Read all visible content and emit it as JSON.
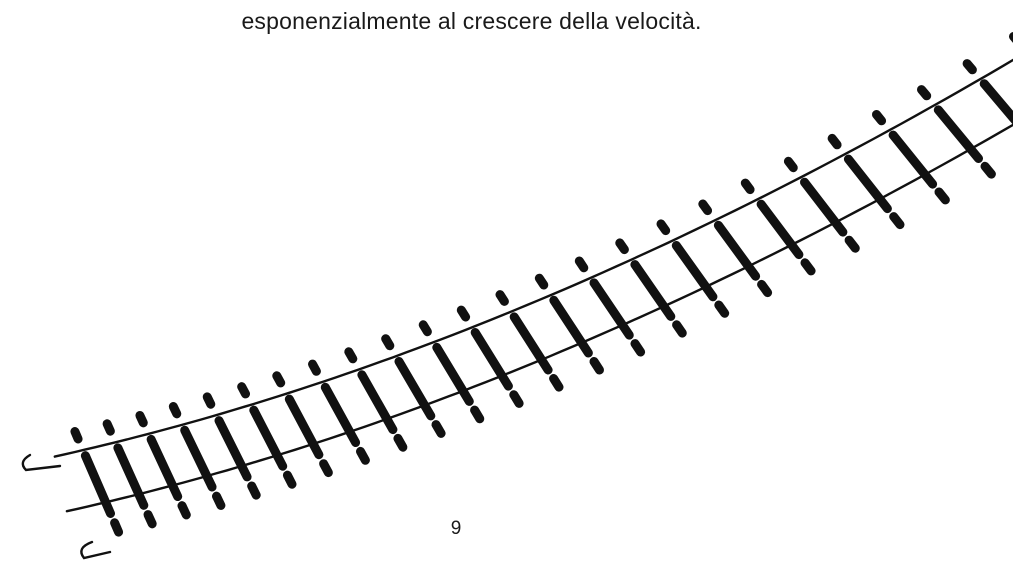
{
  "document": {
    "text_line": "esponenzialmente al crescere della velocità.",
    "page_number": "9"
  },
  "illustration": {
    "subject": "railway-track",
    "ink_color": "#111111",
    "background_color": "#ffffff"
  }
}
